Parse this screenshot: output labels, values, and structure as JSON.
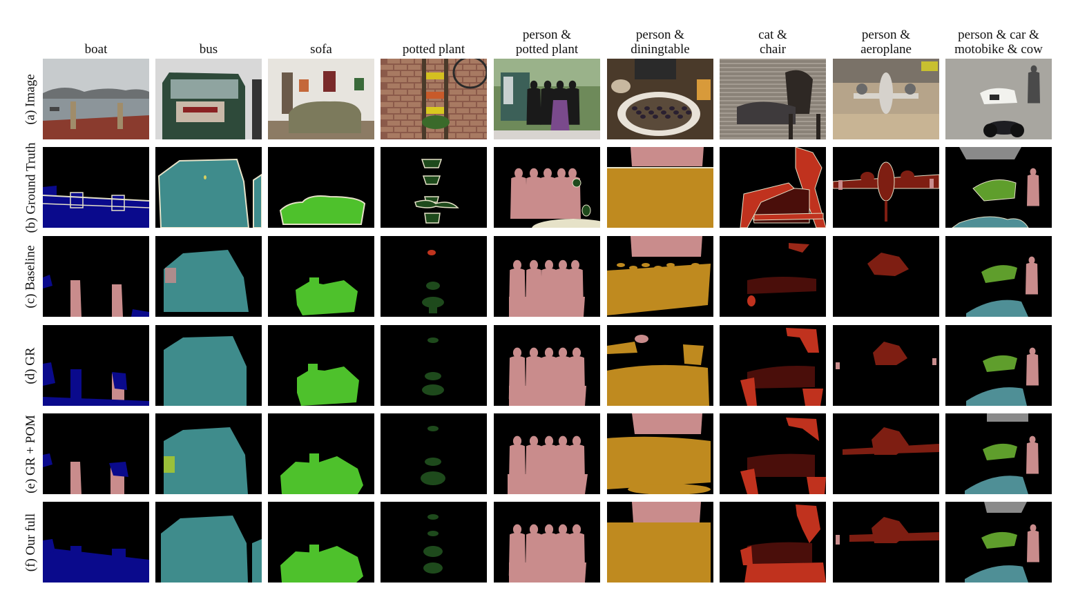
{
  "columns": [
    {
      "label": "boat"
    },
    {
      "label": "bus"
    },
    {
      "label": "sofa"
    },
    {
      "label": "potted plant"
    },
    {
      "label": "person &\npotted plant"
    },
    {
      "label": "person &\ndiningtable"
    },
    {
      "label": "cat  &\nchair"
    },
    {
      "label": "person &\naeroplane"
    },
    {
      "label": "person &  car &\nmotobike & cow"
    }
  ],
  "rows": [
    {
      "label": "(a) Image"
    },
    {
      "label": "(b) Ground Truth"
    },
    {
      "label": "(c) Baseline"
    },
    {
      "label": "(d)  GR"
    },
    {
      "label": "(e)  GR + POM"
    },
    {
      "label": "(f)  Our full"
    }
  ],
  "palette": {
    "background": "#000000",
    "boat": "#0a0a8c",
    "bus": "#3f8c8c",
    "sofa": "#4ec12c",
    "pottedplant": "#1e4a1c",
    "person": "#c98c8c",
    "diningtable": "#bf8a1f",
    "cat": "#4a0e0a",
    "chair": "#c0321e",
    "aeroplane": "#7e1e12",
    "car": "#8a8a8a",
    "motorbike": "#4f8f96",
    "cow": "#5f9e2c",
    "boundary": "#e6e2c8"
  }
}
